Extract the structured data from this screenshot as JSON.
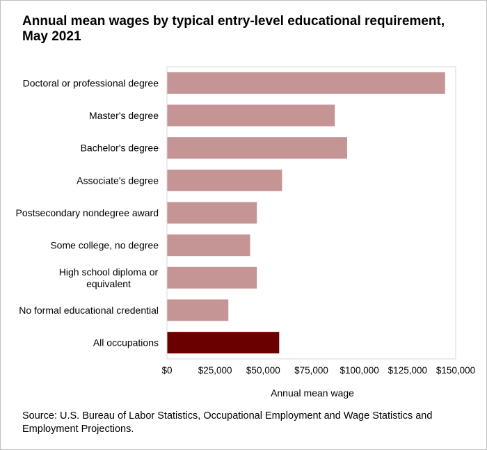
{
  "title": "Annual mean wages by typical entry-level educational requirement, May 2021",
  "source": "Source: U.S. Bureau of Labor Statistics, Occupational Employment and Wage Statistics and Employment Projections.",
  "colors": {
    "bar": "#c49594",
    "highlight": "#6b0000",
    "grid": "#d9d9d9",
    "axis": "#bfbfbf"
  },
  "chart_data": {
    "type": "bar",
    "orientation": "horizontal",
    "title": "Annual mean wages by typical entry-level educational requirement, May 2021",
    "xlabel": "Annual mean wage",
    "ylabel": "",
    "xlim": [
      0,
      150000
    ],
    "x_ticks": [
      0,
      25000,
      50000,
      75000,
      100000,
      125000,
      150000
    ],
    "x_tick_labels": [
      "$0",
      "$25,000",
      "$50,000",
      "$75,000",
      "$100,000",
      "$125,000",
      "$150,000"
    ],
    "categories": [
      [
        "Doctoral or professional degree"
      ],
      [
        "Master's degree"
      ],
      [
        "Bachelor's degree"
      ],
      [
        "Associate's degree"
      ],
      [
        "Postsecondary nondegree award"
      ],
      [
        "Some college, no degree"
      ],
      [
        "High school diploma or",
        "equivalent"
      ],
      [
        "No formal educational credential"
      ],
      [
        "All occupations"
      ]
    ],
    "values": [
      144500,
      87200,
      93600,
      59800,
      46700,
      43200,
      46700,
      31900,
      58300
    ],
    "highlight_index": 8,
    "grid": false
  }
}
